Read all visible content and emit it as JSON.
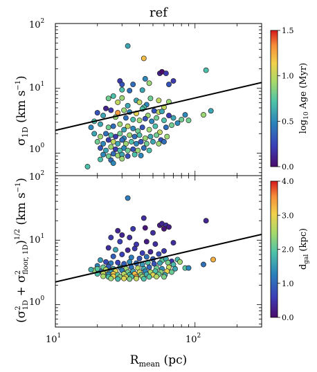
{
  "title": "ref",
  "xlabel": "R_mean (pc)",
  "x_tick_labels": [
    {
      "base": "10",
      "exp": "1"
    },
    {
      "base": "10",
      "exp": "2"
    }
  ],
  "y_tick_labels": [
    {
      "base": "10",
      "exp": "0"
    },
    {
      "base": "10",
      "exp": "1"
    },
    {
      "base": "10",
      "exp": "2"
    }
  ],
  "chart_data": [
    {
      "type": "scatter",
      "panel": "top",
      "xscale": "log",
      "yscale": "log",
      "xlim": [
        10,
        300
      ],
      "ylim": [
        0.45,
        100
      ],
      "ylabel": "σ_1D (km s^-1)",
      "colorbar": {
        "title": "log10 Age (Myr)",
        "range": [
          0,
          1.5
        ],
        "ticks": [
          "0.0",
          "0.5",
          "1.0",
          "1.5"
        ]
      },
      "trend_line": {
        "x": [
          10,
          300
        ],
        "y": [
          2.25,
          12.3
        ]
      },
      "points": [
        [
          33,
          45,
          0.6
        ],
        [
          43,
          29,
          1.2
        ],
        [
          56,
          17,
          0.1
        ],
        [
          58,
          18,
          0.0
        ],
        [
          62,
          17,
          0.2
        ],
        [
          65,
          11.5,
          0.3
        ],
        [
          70,
          13,
          0.2
        ],
        [
          120,
          19,
          0.7
        ],
        [
          44,
          14,
          0.5
        ],
        [
          29,
          13,
          0.2
        ],
        [
          30,
          11.5,
          0.3
        ],
        [
          36,
          11.5,
          0.4
        ],
        [
          30,
          9.5,
          0.7
        ],
        [
          34,
          9.2,
          0.4
        ],
        [
          47,
          12,
          0.9
        ],
        [
          42,
          9.4,
          0.6
        ],
        [
          26,
          7.6,
          0.7
        ],
        [
          24,
          7.0,
          0.8
        ],
        [
          30,
          7.1,
          0.9
        ],
        [
          28,
          6.1,
          1.0
        ],
        [
          48,
          7.0,
          0.8
        ],
        [
          38,
          6.5,
          0.6
        ],
        [
          40,
          6.1,
          1.0
        ],
        [
          45,
          5.6,
          0.5
        ],
        [
          43,
          5.1,
          0.7
        ],
        [
          55,
          6.5,
          1.0
        ],
        [
          60,
          5.1,
          1.0
        ],
        [
          65,
          6.2,
          0.9
        ],
        [
          33,
          5.4,
          0.6
        ],
        [
          25,
          4.6,
          0.2
        ],
        [
          28,
          4.2,
          1.3
        ],
        [
          31,
          4.6,
          0.9
        ],
        [
          34,
          4.3,
          0.5
        ],
        [
          38,
          4.1,
          1.1
        ],
        [
          42,
          4.8,
          0.7
        ],
        [
          46,
          3.8,
          0.9
        ],
        [
          51,
          4.5,
          0.3
        ],
        [
          55,
          4.3,
          1.0
        ],
        [
          58,
          4.4,
          0.6
        ],
        [
          23,
          4.9,
          0.1
        ],
        [
          20,
          4.2,
          0.3
        ],
        [
          22,
          3.8,
          0.6
        ],
        [
          27,
          3.6,
          0.9
        ],
        [
          32,
          3.5,
          0.4
        ],
        [
          36,
          3.3,
          0.7
        ],
        [
          40,
          3.2,
          0.9
        ],
        [
          44,
          3.4,
          0.3
        ],
        [
          49,
          3.1,
          0.5
        ],
        [
          53,
          3.5,
          0.8
        ],
        [
          60,
          3.2,
          0.7
        ],
        [
          65,
          3.8,
          0.2
        ],
        [
          70,
          3.5,
          0.6
        ],
        [
          80,
          3.3,
          0.8
        ],
        [
          85,
          3.9,
          0.5
        ],
        [
          115,
          3.9,
          0.9
        ],
        [
          130,
          4.5,
          0.6
        ],
        [
          18,
          2.5,
          0.5
        ],
        [
          19,
          3.1,
          0.7
        ],
        [
          21,
          2.8,
          0.6
        ],
        [
          24,
          2.5,
          0.8
        ],
        [
          26,
          2.6,
          0.4
        ],
        [
          29,
          2.8,
          0.9
        ],
        [
          31,
          2.3,
          0.6
        ],
        [
          33,
          2.6,
          1.0
        ],
        [
          36,
          2.4,
          0.5
        ],
        [
          39,
          2.2,
          0.8
        ],
        [
          42,
          2.5,
          0.3
        ],
        [
          47,
          2.3,
          0.9
        ],
        [
          52,
          2.6,
          0.7
        ],
        [
          56,
          2.1,
          1.0
        ],
        [
          62,
          2.5,
          0.4
        ],
        [
          68,
          2.7,
          0.8
        ],
        [
          75,
          2.9,
          0.5
        ],
        [
          90,
          3.2,
          0.8
        ],
        [
          19,
          2.0,
          0.6
        ],
        [
          21,
          1.8,
          0.9
        ],
        [
          23,
          2.0,
          0.4
        ],
        [
          25,
          1.9,
          0.7
        ],
        [
          27,
          1.8,
          0.2
        ],
        [
          29,
          2.0,
          0.8
        ],
        [
          31,
          1.7,
          0.5
        ],
        [
          34,
          1.9,
          0.9
        ],
        [
          37,
          1.8,
          0.4
        ],
        [
          40,
          1.9,
          0.7
        ],
        [
          44,
          1.7,
          0.9
        ],
        [
          48,
          1.8,
          0.6
        ],
        [
          53,
          1.9,
          0.8
        ],
        [
          57,
          1.6,
          0.3
        ],
        [
          63,
          1.8,
          0.9
        ],
        [
          20,
          1.5,
          0.8
        ],
        [
          22,
          1.4,
          0.5
        ],
        [
          24,
          1.6,
          0.2
        ],
        [
          26,
          1.5,
          1.0
        ],
        [
          28,
          1.4,
          0.6
        ],
        [
          30,
          1.6,
          0.4
        ],
        [
          32,
          1.4,
          0.9
        ],
        [
          35,
          1.5,
          0.7
        ],
        [
          38,
          1.4,
          0.5
        ],
        [
          41,
          1.5,
          0.3
        ],
        [
          45,
          1.4,
          0.8
        ],
        [
          50,
          1.5,
          0.6
        ],
        [
          55,
          1.4,
          0.9
        ],
        [
          60,
          1.5,
          0.4
        ],
        [
          21,
          1.2,
          0.3
        ],
        [
          23,
          1.1,
          0.6
        ],
        [
          25,
          1.25,
          0.9
        ],
        [
          27,
          1.15,
          0.2
        ],
        [
          29,
          1.1,
          0.7
        ],
        [
          31,
          1.2,
          0.5
        ],
        [
          33,
          1.1,
          0.8
        ],
        [
          36,
          1.15,
          0.3
        ],
        [
          39,
          1.1,
          0.9
        ],
        [
          43,
          1.2,
          0.4
        ],
        [
          47,
          1.1,
          0.7
        ],
        [
          22,
          0.95,
          0.5
        ],
        [
          24,
          0.9,
          0.8
        ],
        [
          26,
          0.98,
          0.4
        ],
        [
          28,
          0.92,
          0.9
        ],
        [
          30,
          0.95,
          0.6
        ],
        [
          33,
          0.9,
          0.3
        ],
        [
          37,
          0.95,
          0.7
        ],
        [
          41,
          0.92,
          0.5
        ],
        [
          21,
          0.8,
          0.7
        ],
        [
          25,
          0.78,
          0.4
        ],
        [
          30,
          0.82,
          0.9
        ],
        [
          17,
          0.62,
          0.7
        ],
        [
          26,
          0.7,
          0.5
        ]
      ]
    },
    {
      "type": "scatter",
      "panel": "bottom",
      "xscale": "log",
      "yscale": "log",
      "xlim": [
        10,
        300
      ],
      "ylim": [
        0.45,
        100
      ],
      "ylabel": "(σ²_1D + σ²_floor,1D)^1/2 (km s^-1)",
      "colorbar": {
        "title": "d_gal (kpc)",
        "range": [
          0,
          4
        ],
        "ticks": [
          "0.0",
          "1.0",
          "2.0",
          "3.0",
          "4.0"
        ]
      },
      "trend_line": {
        "x": [
          10,
          300
        ],
        "y": [
          2.25,
          12.3
        ]
      },
      "points": [
        [
          33,
          45,
          1.2
        ],
        [
          43,
          22,
          0.4
        ],
        [
          56,
          17,
          0.2
        ],
        [
          58,
          18,
          0.3
        ],
        [
          62,
          17,
          0.4
        ],
        [
          60,
          15,
          0.1
        ],
        [
          65,
          16,
          0.2
        ],
        [
          120,
          20,
          0.3
        ],
        [
          28,
          14,
          0.3
        ],
        [
          36,
          15,
          0.5
        ],
        [
          44,
          15.5,
          0.1
        ],
        [
          50,
          13,
          0.4
        ],
        [
          25,
          11,
          0.5
        ],
        [
          30,
          12,
          0.3
        ],
        [
          34,
          11,
          0.4
        ],
        [
          29,
          9.5,
          0.6
        ],
        [
          38,
          8.6,
          0.5
        ],
        [
          45,
          9.5,
          0.2
        ],
        [
          52,
          8.7,
          0.4
        ],
        [
          70,
          9.1,
          0.4
        ],
        [
          24,
          7.6,
          0.4
        ],
        [
          27,
          7.1,
          1.6
        ],
        [
          33,
          7.0,
          0.3
        ],
        [
          37,
          7.4,
          0.5
        ],
        [
          42,
          6.3,
          0.6
        ],
        [
          48,
          6.6,
          0.3
        ],
        [
          55,
          6.1,
          0.7
        ],
        [
          60,
          6.8,
          0.5
        ],
        [
          30,
          6.0,
          0.6
        ],
        [
          26,
          5.6,
          0.9
        ],
        [
          35,
          5.4,
          1.2
        ],
        [
          40,
          5.2,
          0.8
        ],
        [
          45,
          5.5,
          1.1
        ],
        [
          50,
          5.1,
          0.9
        ],
        [
          58,
          4.8,
          2.0
        ],
        [
          62,
          5.1,
          1.7
        ],
        [
          68,
          4.7,
          0.5
        ],
        [
          75,
          5.0,
          1.8
        ],
        [
          21,
          4.9,
          1.5
        ],
        [
          23,
          4.6,
          0.7
        ],
        [
          25,
          4.4,
          1.2
        ],
        [
          28,
          4.5,
          0.6
        ],
        [
          31,
          4.3,
          0.9
        ],
        [
          34,
          4.6,
          1.4
        ],
        [
          38,
          4.4,
          1.0
        ],
        [
          42,
          4.2,
          1.5
        ],
        [
          46,
          4.5,
          1.9
        ],
        [
          51,
          4.3,
          0.8
        ],
        [
          56,
          4.4,
          1.6
        ],
        [
          64,
          4.5,
          2.2
        ],
        [
          70,
          4.2,
          1.8
        ],
        [
          78,
          4.6,
          2.4
        ],
        [
          115,
          4.2,
          1.1
        ],
        [
          135,
          5.0,
          3.3
        ],
        [
          20,
          4.0,
          1.3
        ],
        [
          22,
          3.8,
          2.1
        ],
        [
          24,
          3.9,
          0.9
        ],
        [
          26,
          3.6,
          1.8
        ],
        [
          29,
          3.8,
          1.5
        ],
        [
          32,
          3.6,
          2.4
        ],
        [
          35,
          3.8,
          1.1
        ],
        [
          39,
          3.7,
          2.6
        ],
        [
          43,
          3.6,
          1.7
        ],
        [
          47,
          3.8,
          1.0
        ],
        [
          53,
          3.7,
          2.1
        ],
        [
          58,
          3.6,
          1.4
        ],
        [
          65,
          3.8,
          2.7
        ],
        [
          72,
          3.6,
          1.6
        ],
        [
          85,
          3.7,
          2.0
        ],
        [
          19,
          3.4,
          2.4
        ],
        [
          21,
          3.3,
          1.1
        ],
        [
          23,
          3.5,
          2.6
        ],
        [
          25,
          3.2,
          1.5
        ],
        [
          27,
          3.3,
          2.9
        ],
        [
          30,
          3.4,
          1.2
        ],
        [
          33,
          3.2,
          2.2
        ],
        [
          36,
          3.3,
          1.6
        ],
        [
          40,
          3.2,
          2.8
        ],
        [
          44,
          3.3,
          1.3
        ],
        [
          48,
          3.2,
          2.5
        ],
        [
          52,
          3.3,
          1.9
        ],
        [
          57,
          3.2,
          2.3
        ],
        [
          63,
          3.3,
          3.0
        ],
        [
          68,
          3.2,
          2.1
        ],
        [
          20,
          3.0,
          1.9
        ],
        [
          22,
          3.05,
          2.7
        ],
        [
          24,
          2.95,
          1.4
        ],
        [
          26,
          3.0,
          3.1
        ],
        [
          28,
          2.9,
          2.0
        ],
        [
          31,
          3.0,
          2.6
        ],
        [
          34,
          2.9,
          1.8
        ],
        [
          37,
          3.0,
          3.2
        ],
        [
          41,
          2.9,
          2.2
        ],
        [
          45,
          2.95,
          1.7
        ],
        [
          50,
          2.9,
          2.9
        ],
        [
          55,
          2.95,
          2.1
        ],
        [
          61,
          2.9,
          1.6
        ],
        [
          22,
          2.75,
          2.5
        ],
        [
          24,
          2.7,
          1.9
        ],
        [
          26,
          2.75,
          3.0
        ],
        [
          29,
          2.7,
          2.3
        ],
        [
          32,
          2.7,
          2.8
        ],
        [
          35,
          2.72,
          1.9
        ],
        [
          38,
          2.7,
          3.4
        ],
        [
          42,
          2.72,
          2.4
        ],
        [
          47,
          2.7,
          2.0
        ],
        [
          53,
          2.72,
          2.6
        ],
        [
          60,
          2.7,
          2.2
        ],
        [
          25,
          2.55,
          2.4
        ],
        [
          28,
          2.5,
          1.8
        ],
        [
          31,
          2.55,
          2.9
        ],
        [
          34,
          2.5,
          2.2
        ],
        [
          38,
          2.55,
          2.7
        ],
        [
          43,
          2.52,
          1.9
        ],
        [
          20,
          3.6,
          2.0
        ],
        [
          18,
          3.5,
          1.7
        ],
        [
          90,
          3.7,
          1.3
        ]
      ]
    }
  ]
}
